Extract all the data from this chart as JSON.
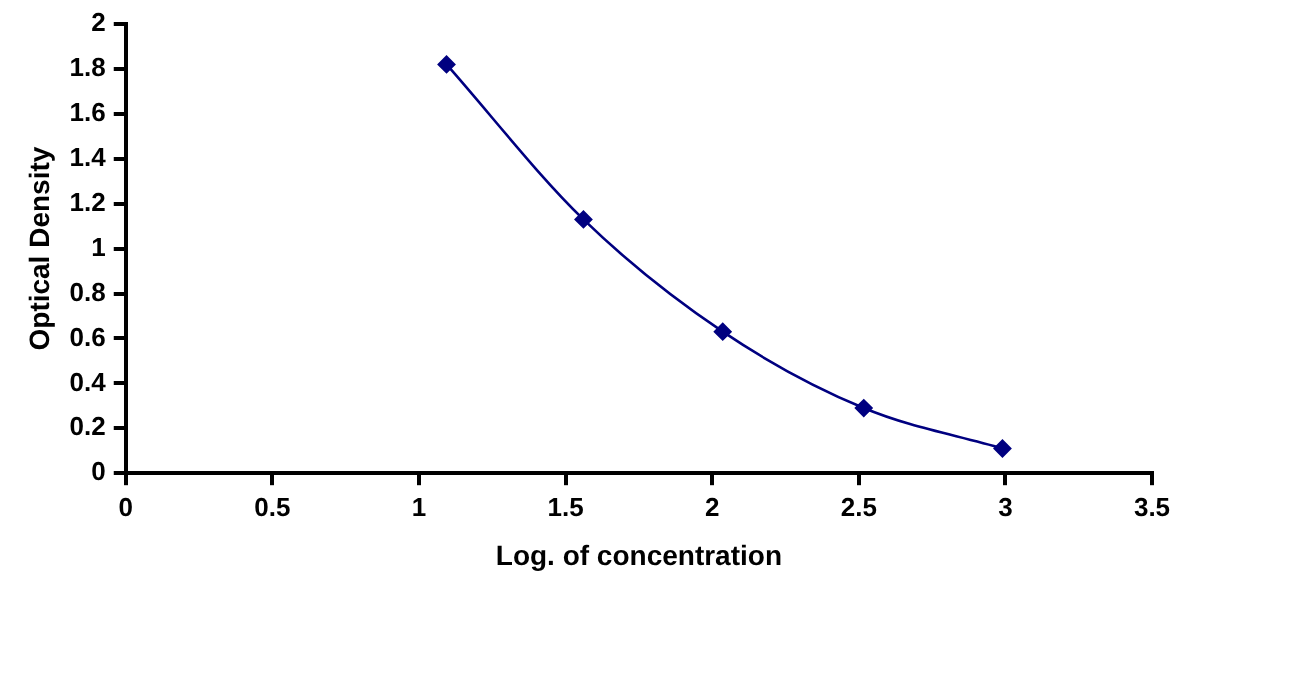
{
  "chart_data": {
    "type": "line",
    "xlabel": "Log. of concentration",
    "ylabel": "Optical Density",
    "x": [
      1.094,
      1.561,
      2.036,
      2.517,
      2.99
    ],
    "series": [
      {
        "color": "#000080",
        "values": [
          1.82,
          1.13,
          0.63,
          0.29,
          0.11
        ]
      }
    ],
    "xlim": [
      0,
      3.5
    ],
    "xticks": [
      0,
      0.5,
      1,
      1.5,
      2,
      2.5,
      3,
      3.5
    ],
    "ylim": [
      0,
      2
    ],
    "yticks": [
      0,
      0.2,
      0.4,
      0.6,
      0.8,
      1,
      1.2,
      1.4,
      1.6,
      1.8,
      2
    ],
    "grid": false,
    "legend": false,
    "marker": "diamond",
    "line_style": "solid"
  }
}
